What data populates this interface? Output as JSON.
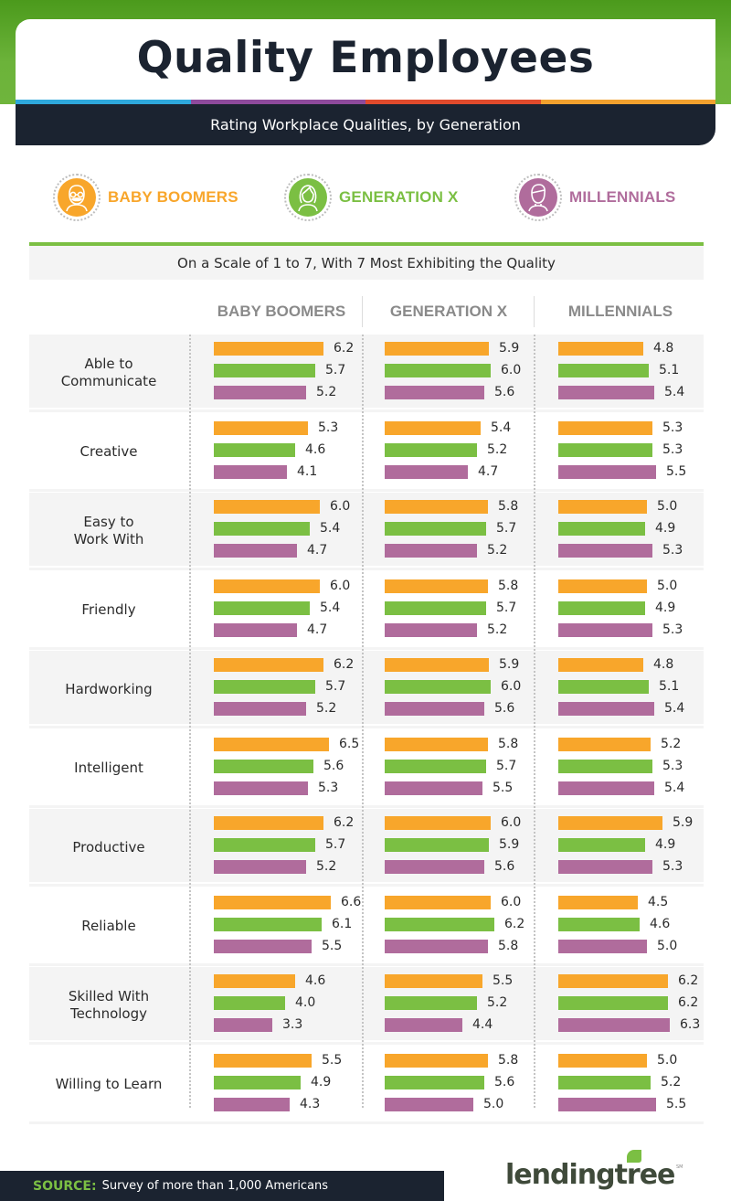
{
  "header": {
    "title": "Quality Employees",
    "subtitle": "Rating Workplace Qualities, by Generation",
    "stripe_colors": [
      "#2ea8dc",
      "#8e4a9c",
      "#e04a2c",
      "#f2a12e"
    ]
  },
  "legend": [
    {
      "label": "BABY BOOMERS",
      "icon": "older-man-with-glasses-and-mustache-icon",
      "color": "#f8a62b"
    },
    {
      "label": "GENERATION X",
      "icon": "woman-with-long-hair-icon",
      "color": "#7bbf43"
    },
    {
      "label": "MILLENNIALS",
      "icon": "young-man-icon",
      "color": "#b06c9c"
    }
  ],
  "scale_note": "On a Scale of 1 to 7, With 7 Most Exhibiting the Quality",
  "footer": {
    "source_label": "SOURCE:",
    "source_text": "Survey of more than 1,000 Americans",
    "logo_text": "lendingtree",
    "logo_mark": "SM"
  },
  "chart_data": {
    "type": "bar",
    "title": "Quality Employees",
    "subtitle": "Rating Workplace Qualities, by Generation",
    "note": "On a Scale of 1 to 7, With 7 Most Exhibiting the Quality",
    "orientation": "horizontal",
    "panels": [
      "BABY BOOMERS",
      "GENERATION X",
      "MILLENNIALS"
    ],
    "panel_description": "Each panel is the generation being rated; bars within a panel show ratings given by each respondent generation",
    "series_names": [
      "Baby Boomers",
      "Generation X",
      "Millennials"
    ],
    "series_colors": [
      "#f8a62b",
      "#7bbf43",
      "#b06c9c"
    ],
    "xlim": [
      0,
      7
    ],
    "grid": false,
    "legend_position": "top",
    "categories": [
      "Able to\nCommunicate",
      "Creative",
      "Easy to\nWork With",
      "Friendly",
      "Hardworking",
      "Intelligent",
      "Productive",
      "Reliable",
      "Skilled With\nTechnology",
      "Willing to Learn"
    ],
    "values": [
      [
        [
          6.2,
          5.7,
          5.2
        ],
        [
          5.9,
          6.0,
          5.6
        ],
        [
          4.8,
          5.1,
          5.4
        ]
      ],
      [
        [
          5.3,
          4.6,
          4.1
        ],
        [
          5.4,
          5.2,
          4.7
        ],
        [
          5.3,
          5.3,
          5.5
        ]
      ],
      [
        [
          6.0,
          5.4,
          4.7
        ],
        [
          5.8,
          5.7,
          5.2
        ],
        [
          5.0,
          4.9,
          5.3
        ]
      ],
      [
        [
          6.0,
          5.4,
          4.7
        ],
        [
          5.8,
          5.7,
          5.2
        ],
        [
          5.0,
          4.9,
          5.3
        ]
      ],
      [
        [
          6.2,
          5.7,
          5.2
        ],
        [
          5.9,
          6.0,
          5.6
        ],
        [
          4.8,
          5.1,
          5.4
        ]
      ],
      [
        [
          6.5,
          5.6,
          5.3
        ],
        [
          5.8,
          5.7,
          5.5
        ],
        [
          5.2,
          5.3,
          5.4
        ]
      ],
      [
        [
          6.2,
          5.7,
          5.2
        ],
        [
          6.0,
          5.9,
          5.6
        ],
        [
          5.9,
          4.9,
          5.3
        ]
      ],
      [
        [
          6.6,
          6.1,
          5.5
        ],
        [
          6.0,
          6.2,
          5.8
        ],
        [
          4.5,
          4.6,
          5.0
        ]
      ],
      [
        [
          4.6,
          4.0,
          3.3
        ],
        [
          5.5,
          5.2,
          4.4
        ],
        [
          6.2,
          6.2,
          6.3
        ]
      ],
      [
        [
          5.5,
          4.9,
          4.3
        ],
        [
          5.8,
          5.6,
          5.0
        ],
        [
          5.0,
          5.2,
          5.5
        ]
      ]
    ]
  }
}
